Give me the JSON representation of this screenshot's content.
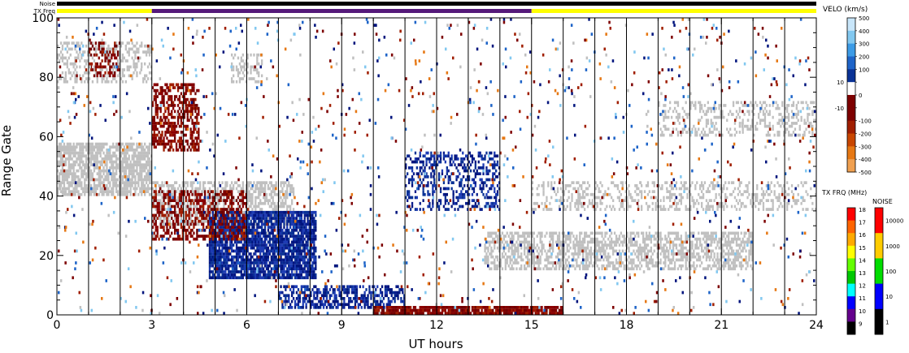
{
  "chart_data": {
    "type": "heatmap",
    "xlabel": "UT hours",
    "ylabel": "Range Gate",
    "xlim": [
      0,
      24
    ],
    "ylim": [
      0,
      100
    ],
    "x_ticks": [
      "0",
      "3",
      "6",
      "9",
      "12",
      "15",
      "18",
      "21",
      "24"
    ],
    "y_ticks": [
      "0",
      "20",
      "40",
      "60",
      "80",
      "100"
    ],
    "x_tick_values": [
      0,
      3,
      6,
      9,
      12,
      15,
      18,
      21,
      24
    ],
    "y_tick_values": [
      0,
      20,
      40,
      60,
      80,
      100
    ],
    "scan_boundaries_ut": [
      1,
      2,
      3,
      4,
      5,
      6,
      7,
      8,
      9,
      10,
      11,
      12,
      13,
      14,
      15,
      16,
      17,
      18,
      19,
      20,
      21,
      22,
      23
    ],
    "status_bars": {
      "noise_label": "Noise",
      "txfreq_label": "TX Freq",
      "noise_color": "#000000",
      "txfreq_segments": [
        {
          "start": 0,
          "end": 3,
          "color": "#ffff00"
        },
        {
          "start": 3,
          "end": 15,
          "color": "#55197a"
        },
        {
          "start": 15,
          "end": 24,
          "color": "#ffff00"
        }
      ]
    },
    "regions": [
      {
        "kind": "ground",
        "x0": 0,
        "x1": 3,
        "g0": 40,
        "g1": 58,
        "density": 0.75
      },
      {
        "kind": "ground",
        "x0": 0,
        "x1": 3,
        "g0": 78,
        "g1": 92,
        "density": 0.35
      },
      {
        "kind": "ground",
        "x0": 3,
        "x1": 7.5,
        "g0": 30,
        "g1": 45,
        "density": 0.55
      },
      {
        "kind": "ground",
        "x0": 5.5,
        "x1": 6.5,
        "g0": 78,
        "g1": 88,
        "density": 0.35
      },
      {
        "kind": "ground",
        "x0": 13.5,
        "x1": 22,
        "g0": 15,
        "g1": 28,
        "density": 0.55
      },
      {
        "kind": "ground",
        "x0": 15,
        "x1": 24,
        "g0": 35,
        "g1": 45,
        "density": 0.3
      },
      {
        "kind": "ground",
        "x0": 19,
        "x1": 24,
        "g0": 60,
        "g1": 72,
        "density": 0.3
      },
      {
        "kind": "pos",
        "x0": 4.8,
        "x1": 8.2,
        "g0": 12,
        "g1": 35,
        "density": 0.85
      },
      {
        "kind": "pos",
        "x0": 7,
        "x1": 11,
        "g0": 2,
        "g1": 10,
        "density": 0.55
      },
      {
        "kind": "pos",
        "x0": 11,
        "x1": 14,
        "g0": 35,
        "g1": 55,
        "density": 0.35
      },
      {
        "kind": "neg",
        "x0": 3,
        "x1": 4.5,
        "g0": 55,
        "g1": 78,
        "density": 0.55
      },
      {
        "kind": "neg",
        "x0": 3,
        "x1": 6,
        "g0": 25,
        "g1": 42,
        "density": 0.45
      },
      {
        "kind": "neg",
        "x0": 10,
        "x1": 16,
        "g0": 0,
        "g1": 3,
        "density": 0.9
      },
      {
        "kind": "neg",
        "x0": 1,
        "x1": 2,
        "g0": 80,
        "g1": 92,
        "density": 0.35
      }
    ],
    "velocity_scale": {
      "title": "VELO (km/s)",
      "labels": [
        "500",
        "400",
        "300",
        "200",
        "100",
        "10",
        "0",
        "-10",
        "-100",
        "-200",
        "-300",
        "-400",
        "-500"
      ],
      "colors": [
        "#c8e6fa",
        "#82c8f0",
        "#3c9be6",
        "#1e64c8",
        "#0a3296",
        "#00147d",
        "#ffffff",
        "#7d0000",
        "#a01e00",
        "#c84600",
        "#e67814",
        "#f0a050",
        "#fad2a0"
      ]
    },
    "txfreq_scale": {
      "title": "TX FRQ (MHz)",
      "labels": [
        "18",
        "17",
        "16",
        "15",
        "14",
        "13",
        "12",
        "11",
        "10",
        "9"
      ],
      "colors": [
        "#ff0000",
        "#ff6400",
        "#ffaa00",
        "#ffff00",
        "#64ff00",
        "#00c800",
        "#00ffff",
        "#0000ff",
        "#64008c",
        "#000000"
      ]
    },
    "noise_scale": {
      "title": "NOISE",
      "labels": [
        "10000",
        "1000",
        "100",
        "10",
        "1"
      ],
      "colors": [
        "#ff0000",
        "#ffcc00",
        "#00dd00",
        "#0000ff",
        "#000000"
      ]
    }
  }
}
